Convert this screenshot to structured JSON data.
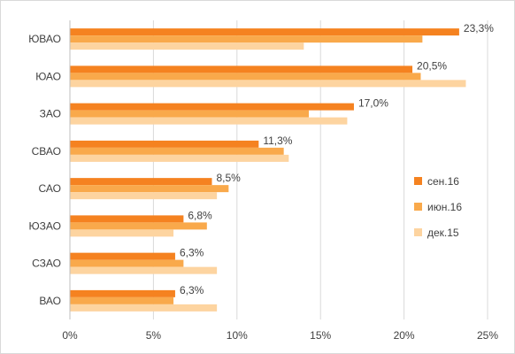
{
  "chart_data": {
    "type": "bar",
    "orientation": "horizontal",
    "categories": [
      "ЮВАО",
      "ЮАО",
      "ЗАО",
      "СВАО",
      "САО",
      "ЮЗАО",
      "СЗАО",
      "ВАО"
    ],
    "series": [
      {
        "name": "сен.16",
        "color": "#f58220",
        "values": [
          23.3,
          20.5,
          17.0,
          11.3,
          8.5,
          6.8,
          6.3,
          6.3
        ]
      },
      {
        "name": "июн.16",
        "color": "#f9a94b",
        "values": [
          21.1,
          21.0,
          14.3,
          12.8,
          9.5,
          8.2,
          6.8,
          6.2
        ]
      },
      {
        "name": "дек.15",
        "color": "#fdd4a0",
        "values": [
          14.0,
          23.7,
          16.6,
          13.1,
          8.8,
          6.2,
          8.8,
          8.8
        ]
      }
    ],
    "data_labels": [
      "23,3%",
      "20,5%",
      "17,0%",
      "11,3%",
      "8,5%",
      "6,8%",
      "6,3%",
      "6,3%"
    ],
    "x_ticks": [
      "0%",
      "5%",
      "10%",
      "15%",
      "20%",
      "25%"
    ],
    "xlim": [
      0,
      25
    ],
    "grid": true,
    "legend_position": "right"
  }
}
